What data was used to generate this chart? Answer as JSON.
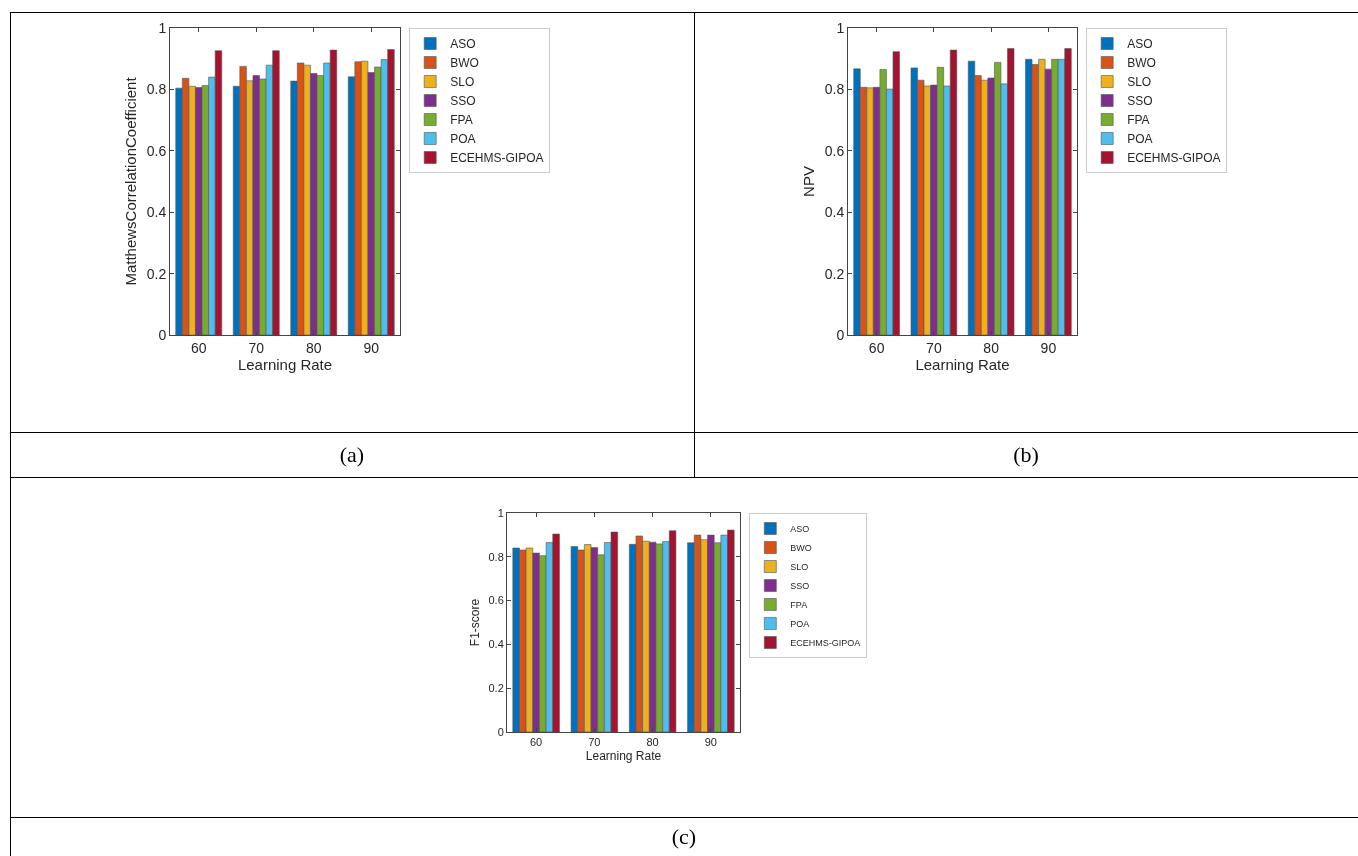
{
  "chart_data": [
    {
      "type": "bar",
      "xlabel": "Learning Rate",
      "ylabel": "MatthewsCorrelationCoefficient",
      "categories": [
        "60",
        "70",
        "80",
        "90"
      ],
      "ylim": [
        0,
        1
      ],
      "yticks": [
        0,
        0.2,
        0.4,
        0.6,
        0.8,
        1
      ],
      "grid": false,
      "legend": "top right",
      "annotations": [
        "(a)"
      ],
      "series": [
        {
          "name": "ASO",
          "color": "#0072bd",
          "values": [
            0.804,
            0.81,
            0.827,
            0.841
          ]
        },
        {
          "name": "BWO",
          "color": "#d95319",
          "values": [
            0.836,
            0.875,
            0.886,
            0.89
          ]
        },
        {
          "name": "SLO",
          "color": "#edb120",
          "values": [
            0.81,
            0.828,
            0.879,
            0.892
          ]
        },
        {
          "name": "SSO",
          "color": "#7e2f8e",
          "values": [
            0.806,
            0.845,
            0.852,
            0.855
          ]
        },
        {
          "name": "FPA",
          "color": "#77ac30",
          "values": [
            0.813,
            0.834,
            0.845,
            0.873
          ]
        },
        {
          "name": "POA",
          "color": "#4dbeee",
          "values": [
            0.84,
            0.879,
            0.886,
            0.897
          ]
        },
        {
          "name": "ECEHMS-GIPOA",
          "color": "#a2142f",
          "values": [
            0.926,
            0.926,
            0.928,
            0.93
          ]
        }
      ]
    },
    {
      "type": "bar",
      "xlabel": "Learning Rate",
      "ylabel": "NPV",
      "categories": [
        "60",
        "70",
        "80",
        "90"
      ],
      "ylim": [
        0,
        1
      ],
      "yticks": [
        0,
        0.2,
        0.4,
        0.6,
        0.8,
        1
      ],
      "grid": false,
      "legend": "top right",
      "annotations": [
        "(b)"
      ],
      "series": [
        {
          "name": "ASO",
          "color": "#0072bd",
          "values": [
            0.867,
            0.87,
            0.892,
            0.898
          ]
        },
        {
          "name": "BWO",
          "color": "#d95319",
          "values": [
            0.807,
            0.83,
            0.845,
            0.881
          ]
        },
        {
          "name": "SLO",
          "color": "#edb120",
          "values": [
            0.805,
            0.811,
            0.83,
            0.898
          ]
        },
        {
          "name": "SSO",
          "color": "#7e2f8e",
          "values": [
            0.807,
            0.814,
            0.837,
            0.866
          ]
        },
        {
          "name": "FPA",
          "color": "#77ac30",
          "values": [
            0.865,
            0.872,
            0.888,
            0.898
          ]
        },
        {
          "name": "POA",
          "color": "#4dbeee",
          "values": [
            0.801,
            0.811,
            0.818,
            0.898
          ]
        },
        {
          "name": "ECEHMS-GIPOA",
          "color": "#a2142f",
          "values": [
            0.923,
            0.928,
            0.933,
            0.933
          ]
        }
      ]
    },
    {
      "type": "bar",
      "xlabel": "Learning Rate",
      "ylabel": "F1-score",
      "categories": [
        "60",
        "70",
        "80",
        "90"
      ],
      "ylim": [
        0,
        1
      ],
      "yticks": [
        0,
        0.2,
        0.4,
        0.6,
        0.8,
        1
      ],
      "grid": false,
      "legend": "top right",
      "annotations": [
        "(c)"
      ],
      "series": [
        {
          "name": "ASO",
          "color": "#0072bd",
          "values": [
            0.84,
            0.847,
            0.857,
            0.864
          ]
        },
        {
          "name": "BWO",
          "color": "#d95319",
          "values": [
            0.831,
            0.831,
            0.895,
            0.899
          ]
        },
        {
          "name": "SLO",
          "color": "#edb120",
          "values": [
            0.84,
            0.856,
            0.871,
            0.878
          ]
        },
        {
          "name": "SSO",
          "color": "#7e2f8e",
          "values": [
            0.817,
            0.842,
            0.867,
            0.899
          ]
        },
        {
          "name": "FPA",
          "color": "#77ac30",
          "values": [
            0.805,
            0.809,
            0.859,
            0.864
          ]
        },
        {
          "name": "POA",
          "color": "#4dbeee",
          "values": [
            0.865,
            0.865,
            0.87,
            0.899
          ]
        },
        {
          "name": "ECEHMS-GIPOA",
          "color": "#a2142f",
          "values": [
            0.904,
            0.913,
            0.919,
            0.922
          ]
        }
      ]
    }
  ]
}
